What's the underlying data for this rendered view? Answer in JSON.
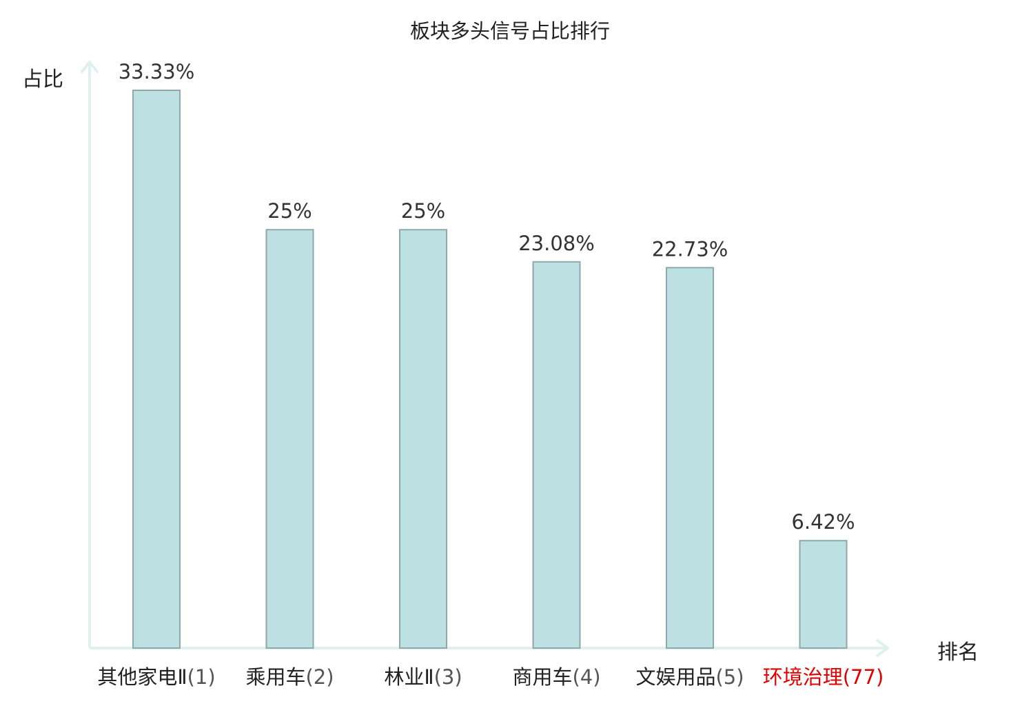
{
  "chart_data": {
    "type": "bar",
    "title": "板块多头信号占比排行",
    "ylabel": "占比",
    "xlabel": "排名",
    "categories": [
      {
        "name": "其他家电Ⅱ",
        "rank": "(1)",
        "highlight": false
      },
      {
        "name": "乘用车",
        "rank": "(2)",
        "highlight": false
      },
      {
        "name": "林业Ⅱ",
        "rank": "(3)",
        "highlight": false
      },
      {
        "name": "商用车",
        "rank": "(4)",
        "highlight": false
      },
      {
        "name": "文娱用品",
        "rank": "(5)",
        "highlight": false
      },
      {
        "name": "环境治理",
        "rank": "(77)",
        "highlight": true
      }
    ],
    "values": [
      33.33,
      25,
      25,
      23.08,
      22.73,
      6.42
    ],
    "value_labels": [
      "33.33%",
      "25%",
      "25%",
      "23.08%",
      "22.73%",
      "6.42%"
    ],
    "ylim": [
      0,
      33.33
    ],
    "grid": false,
    "colors": {
      "bar_fill": "#bde0e3",
      "bar_stroke": "#8fa9ab",
      "axis": "#dff1ef",
      "highlight_text": "#e00000",
      "label_text": "#333333"
    }
  }
}
